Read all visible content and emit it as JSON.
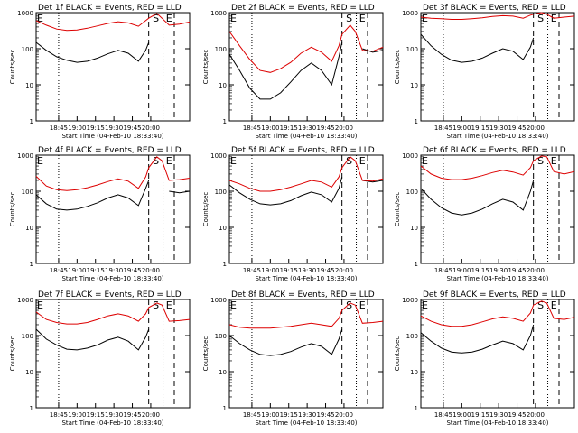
{
  "page": {
    "ylabel": "Counts/sec",
    "xlabel": "Start Time (04-Feb-10 18:33:40)",
    "colors": {
      "events": "#000000",
      "lld": "#dd0000",
      "axis": "#000000"
    }
  },
  "panel_titles": [
    "Det 1f BLACK = Events, RED = LLD",
    "Det 2f BLACK = Events, RED = LLD",
    "Det 3f BLACK = Events, RED = LLD",
    "Det 4f BLACK = Events, RED = LLD",
    "Det 5f BLACK = Events, RED = LLD",
    "Det 6f BLACK = Events, RED = LLD",
    "Det 7f BLACK = Events, RED = LLD",
    "Det 8f BLACK = Events, RED = LLD",
    "Det 9f BLACK = Events, RED = LLD"
  ],
  "chart_data": [
    {
      "type": "line",
      "title": "Det 1f BLACK = Events, RED = LLD",
      "xlabel": "Start Time (04-Feb-10 18:33:40)",
      "ylabel": "Counts/sec",
      "y_scale": "log",
      "ylim": [
        1,
        1000
      ],
      "xticks": [
        "18:45",
        "19:00",
        "19:15",
        "19:30",
        "19:45",
        "20:00"
      ],
      "yticks": [
        "1",
        "10",
        "100",
        "1000"
      ],
      "x_minutes": [
        0,
        10,
        20,
        30,
        40,
        50,
        60,
        70,
        80,
        90,
        100,
        107,
        110,
        118,
        123,
        130,
        140,
        150
      ],
      "series": [
        {
          "name": "Events",
          "values": [
            150,
            90,
            60,
            48,
            42,
            45,
            55,
            72,
            90,
            75,
            45,
            90,
            150,
            null,
            null,
            600,
            null,
            null
          ]
        },
        {
          "name": "LLD",
          "values": [
            600,
            450,
            350,
            320,
            330,
            370,
            430,
            500,
            560,
            520,
            420,
            600,
            700,
            950,
            700,
            450,
            480,
            550
          ]
        }
      ],
      "annotations": [
        {
          "text": "E",
          "x": 0
        },
        {
          "text": "S",
          "x": 113
        },
        {
          "text": "E",
          "x": 126
        }
      ],
      "markers": [
        {
          "style": "dotted",
          "x": 22
        },
        {
          "style": "dashed",
          "x": 110
        },
        {
          "style": "dotted",
          "x": 124
        },
        {
          "style": "dashed",
          "x": 135
        }
      ]
    },
    {
      "type": "line",
      "title": "Det 2f BLACK = Events, RED = LLD",
      "xlabel": "Start Time (04-Feb-10 18:33:40)",
      "ylabel": "Counts/sec",
      "y_scale": "log",
      "ylim": [
        1,
        1000
      ],
      "xticks": [
        "18:45",
        "19:00",
        "19:15",
        "19:30",
        "19:45",
        "20:00"
      ],
      "yticks": [
        "1",
        "10",
        "100",
        "1000"
      ],
      "x_minutes": [
        0,
        10,
        20,
        30,
        40,
        50,
        60,
        70,
        80,
        90,
        100,
        107,
        110,
        118,
        123,
        130,
        140,
        150
      ],
      "series": [
        {
          "name": "Events",
          "values": [
            70,
            25,
            8,
            4,
            4,
            6,
            12,
            25,
            40,
            25,
            10,
            60,
            150,
            null,
            null,
            100,
            80,
            90
          ]
        },
        {
          "name": "LLD",
          "values": [
            300,
            120,
            50,
            25,
            22,
            28,
            42,
            75,
            110,
            80,
            45,
            120,
            250,
            450,
            300,
            90,
            85,
            110
          ]
        }
      ],
      "annotations": [
        {
          "text": "E",
          "x": 0
        },
        {
          "text": "S",
          "x": 113
        },
        {
          "text": "E",
          "x": 126
        }
      ],
      "markers": [
        {
          "style": "dotted",
          "x": 22
        },
        {
          "style": "dashed",
          "x": 110
        },
        {
          "style": "dotted",
          "x": 124
        },
        {
          "style": "dashed",
          "x": 135
        }
      ]
    },
    {
      "type": "line",
      "title": "Det 3f BLACK = Events, RED = LLD",
      "xlabel": "Start Time (04-Feb-10 18:33:40)",
      "ylabel": "Counts/sec",
      "y_scale": "log",
      "ylim": [
        1,
        1000
      ],
      "xticks": [
        "18:45",
        "19:00",
        "19:15",
        "19:30",
        "19:45",
        "20:00"
      ],
      "yticks": [
        "1",
        "10",
        "100",
        "1000"
      ],
      "x_minutes": [
        0,
        10,
        20,
        30,
        40,
        50,
        60,
        70,
        80,
        90,
        100,
        107,
        110,
        118,
        123,
        130,
        140,
        150
      ],
      "series": [
        {
          "name": "Events",
          "values": [
            250,
            120,
            70,
            48,
            42,
            45,
            55,
            75,
            100,
            85,
            50,
            110,
            200,
            null,
            null,
            600,
            null,
            null
          ]
        },
        {
          "name": "LLD",
          "values": [
            750,
            700,
            680,
            650,
            650,
            680,
            720,
            780,
            820,
            800,
            700,
            850,
            900,
            1000,
            900,
            700,
            750,
            800
          ]
        }
      ],
      "annotations": [
        {
          "text": "E",
          "x": 0
        },
        {
          "text": "S",
          "x": 113
        },
        {
          "text": "E",
          "x": 126
        }
      ],
      "markers": [
        {
          "style": "dotted",
          "x": 22
        },
        {
          "style": "dashed",
          "x": 110
        },
        {
          "style": "dotted",
          "x": 124
        },
        {
          "style": "dashed",
          "x": 135
        }
      ]
    },
    {
      "type": "line",
      "title": "Det 4f BLACK = Events, RED = LLD",
      "xlabel": "Start Time (04-Feb-10 18:33:40)",
      "ylabel": "Counts/sec",
      "y_scale": "log",
      "ylim": [
        1,
        1000
      ],
      "xticks": [
        "18:45",
        "19:00",
        "19:15",
        "19:30",
        "19:45",
        "20:00"
      ],
      "yticks": [
        "1",
        "10",
        "100",
        "1000"
      ],
      "x_minutes": [
        0,
        10,
        20,
        30,
        40,
        50,
        60,
        70,
        80,
        90,
        100,
        107,
        110,
        118,
        123,
        130,
        140,
        150
      ],
      "series": [
        {
          "name": "Events",
          "values": [
            80,
            45,
            32,
            30,
            32,
            38,
            48,
            65,
            80,
            65,
            40,
            120,
            200,
            null,
            null,
            100,
            90,
            100
          ]
        },
        {
          "name": "LLD",
          "values": [
            260,
            140,
            110,
            105,
            110,
            125,
            150,
            185,
            220,
            190,
            120,
            250,
            450,
            900,
            700,
            200,
            210,
            230
          ]
        }
      ],
      "annotations": [
        {
          "text": "E",
          "x": 0
        },
        {
          "text": "S",
          "x": 113
        },
        {
          "text": "E",
          "x": 126
        }
      ],
      "markers": [
        {
          "style": "dotted",
          "x": 22
        },
        {
          "style": "dashed",
          "x": 110
        },
        {
          "style": "dotted",
          "x": 124
        },
        {
          "style": "dashed",
          "x": 135
        }
      ]
    },
    {
      "type": "line",
      "title": "Det 5f BLACK = Events, RED = LLD",
      "xlabel": "Start Time (04-Feb-10 18:33:40)",
      "ylabel": "Counts/sec",
      "y_scale": "log",
      "ylim": [
        1,
        1000
      ],
      "xticks": [
        "18:45",
        "19:00",
        "19:15",
        "19:30",
        "19:45",
        "20:00"
      ],
      "yticks": [
        "1",
        "10",
        "100",
        "1000"
      ],
      "x_minutes": [
        0,
        10,
        20,
        30,
        40,
        50,
        60,
        70,
        80,
        90,
        100,
        107,
        110,
        118,
        123,
        130,
        140,
        150
      ],
      "series": [
        {
          "name": "Events",
          "values": [
            150,
            90,
            60,
            45,
            42,
            45,
            55,
            75,
            95,
            80,
            50,
            120,
            250,
            null,
            null,
            200,
            180,
            200
          ]
        },
        {
          "name": "LLD",
          "values": [
            200,
            160,
            120,
            100,
            100,
            110,
            130,
            160,
            200,
            180,
            130,
            250,
            450,
            900,
            700,
            200,
            190,
            220
          ]
        }
      ],
      "annotations": [
        {
          "text": "E",
          "x": 0
        },
        {
          "text": "S",
          "x": 113
        },
        {
          "text": "E",
          "x": 126
        }
      ],
      "markers": [
        {
          "style": "dotted",
          "x": 22
        },
        {
          "style": "dashed",
          "x": 110
        },
        {
          "style": "dotted",
          "x": 124
        },
        {
          "style": "dashed",
          "x": 135
        }
      ]
    },
    {
      "type": "line",
      "title": "Det 6f BLACK = Events, RED = LLD",
      "xlabel": "Start Time (04-Feb-10 18:33:40)",
      "ylabel": "Counts/sec",
      "y_scale": "log",
      "ylim": [
        1,
        1000
      ],
      "xticks": [
        "18:45",
        "19:00",
        "19:15",
        "19:30",
        "19:45",
        "20:00"
      ],
      "yticks": [
        "1",
        "10",
        "100",
        "1000"
      ],
      "x_minutes": [
        0,
        10,
        20,
        30,
        40,
        50,
        60,
        70,
        80,
        90,
        100,
        107,
        110,
        118,
        123,
        130,
        140,
        150
      ],
      "series": [
        {
          "name": "Events",
          "values": [
            120,
            60,
            35,
            25,
            22,
            25,
            32,
            45,
            60,
            50,
            30,
            100,
            200,
            null,
            null,
            300,
            null,
            null
          ]
        },
        {
          "name": "LLD",
          "values": [
            500,
            300,
            230,
            210,
            210,
            230,
            270,
            330,
            380,
            340,
            280,
            450,
            700,
            950,
            900,
            350,
            300,
            350
          ]
        }
      ],
      "annotations": [
        {
          "text": "E",
          "x": 0
        },
        {
          "text": "S",
          "x": 113
        },
        {
          "text": "E",
          "x": 126
        }
      ],
      "markers": [
        {
          "style": "dotted",
          "x": 22
        },
        {
          "style": "dashed",
          "x": 110
        },
        {
          "style": "dotted",
          "x": 124
        },
        {
          "style": "dashed",
          "x": 135
        }
      ]
    },
    {
      "type": "line",
      "title": "Det 7f BLACK = Events, RED = LLD",
      "xlabel": "Start Time (04-Feb-10 18:33:40)",
      "ylabel": "Counts/sec",
      "y_scale": "log",
      "ylim": [
        1,
        1000
      ],
      "xticks": [
        "18:45",
        "19:00",
        "19:15",
        "19:30",
        "19:45",
        "20:00"
      ],
      "yticks": [
        "1",
        "10",
        "100",
        "1000"
      ],
      "x_minutes": [
        0,
        10,
        20,
        30,
        40,
        50,
        60,
        70,
        80,
        90,
        100,
        107,
        110,
        118,
        123,
        130,
        140,
        150
      ],
      "series": [
        {
          "name": "Events",
          "values": [
            150,
            80,
            55,
            42,
            40,
            45,
            55,
            75,
            90,
            70,
            40,
            90,
            150,
            null,
            null,
            150,
            null,
            null
          ]
        },
        {
          "name": "LLD",
          "values": [
            450,
            280,
            230,
            210,
            210,
            230,
            280,
            350,
            400,
            350,
            250,
            400,
            600,
            800,
            700,
            250,
            260,
            280
          ]
        }
      ],
      "annotations": [
        {
          "text": "E",
          "x": 0
        },
        {
          "text": "S",
          "x": 113
        },
        {
          "text": "E",
          "x": 126
        }
      ],
      "markers": [
        {
          "style": "dotted",
          "x": 22
        },
        {
          "style": "dashed",
          "x": 110
        },
        {
          "style": "dotted",
          "x": 124
        },
        {
          "style": "dashed",
          "x": 135
        }
      ]
    },
    {
      "type": "line",
      "title": "Det 8f BLACK = Events, RED = LLD",
      "xlabel": "Start Time (04-Feb-10 18:33:40)",
      "ylabel": "Counts/sec",
      "y_scale": "log",
      "ylim": [
        1,
        1000
      ],
      "xticks": [
        "18:45",
        "19:00",
        "19:15",
        "19:30",
        "19:45",
        "20:00"
      ],
      "yticks": [
        "1",
        "10",
        "100",
        "1000"
      ],
      "x_minutes": [
        0,
        10,
        20,
        30,
        40,
        50,
        60,
        70,
        80,
        90,
        100,
        107,
        110,
        118,
        123,
        130,
        140,
        150
      ],
      "series": [
        {
          "name": "Events",
          "values": [
            100,
            60,
            40,
            30,
            28,
            30,
            36,
            48,
            60,
            50,
            30,
            80,
            150,
            null,
            null,
            150,
            null,
            null
          ]
        },
        {
          "name": "LLD",
          "values": [
            200,
            170,
            160,
            160,
            160,
            170,
            180,
            200,
            220,
            200,
            180,
            300,
            500,
            800,
            700,
            220,
            230,
            250
          ]
        }
      ],
      "annotations": [
        {
          "text": "E",
          "x": 0
        },
        {
          "text": "S",
          "x": 113
        },
        {
          "text": "E",
          "x": 126
        }
      ],
      "markers": [
        {
          "style": "dotted",
          "x": 22
        },
        {
          "style": "dashed",
          "x": 110
        },
        {
          "style": "dotted",
          "x": 124
        },
        {
          "style": "dashed",
          "x": 135
        }
      ]
    },
    {
      "type": "line",
      "title": "Det 9f BLACK = Events, RED = LLD",
      "xlabel": "Start Time (04-Feb-10 18:33:40)",
      "ylabel": "Counts/sec",
      "y_scale": "log",
      "ylim": [
        1,
        1000
      ],
      "xticks": [
        "18:45",
        "19:00",
        "19:15",
        "19:30",
        "19:45",
        "20:00"
      ],
      "yticks": [
        "1",
        "10",
        "100",
        "1000"
      ],
      "x_minutes": [
        0,
        10,
        20,
        30,
        40,
        50,
        60,
        70,
        80,
        90,
        100,
        107,
        110,
        118,
        123,
        130,
        140,
        150
      ],
      "series": [
        {
          "name": "Events",
          "values": [
            120,
            70,
            45,
            35,
            33,
            35,
            42,
            55,
            70,
            60,
            40,
            100,
            200,
            null,
            null,
            300,
            null,
            null
          ]
        },
        {
          "name": "LLD",
          "values": [
            350,
            250,
            200,
            180,
            180,
            200,
            240,
            290,
            330,
            300,
            250,
            420,
            700,
            900,
            800,
            300,
            280,
            320
          ]
        }
      ],
      "annotations": [
        {
          "text": "E",
          "x": 0
        },
        {
          "text": "S",
          "x": 113
        },
        {
          "text": "E",
          "x": 126
        }
      ],
      "markers": [
        {
          "style": "dotted",
          "x": 22
        },
        {
          "style": "dashed",
          "x": 110
        },
        {
          "style": "dotted",
          "x": 124
        },
        {
          "style": "dashed",
          "x": 135
        }
      ]
    }
  ]
}
